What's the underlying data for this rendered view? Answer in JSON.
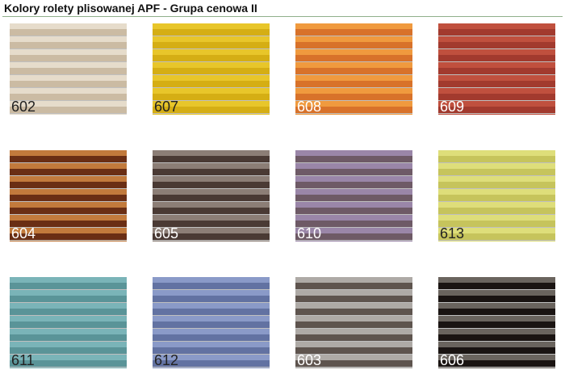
{
  "title": "Kolory rolety plisowanej APF - Grupa cenowa II",
  "swatches": [
    {
      "code": "602",
      "light": "#e6dccb",
      "dark": "#cbbba3",
      "text": "#222222"
    },
    {
      "code": "607",
      "light": "#e8c62a",
      "dark": "#d5ae14",
      "text": "#222222"
    },
    {
      "code": "608",
      "light": "#f09a3e",
      "dark": "#d8722a",
      "text": "#ffffff"
    },
    {
      "code": "609",
      "light": "#c0503e",
      "dark": "#a23a2e",
      "text": "#ffffff"
    },
    {
      "code": "604",
      "light": "#c27a3c",
      "dark": "#6a2e14",
      "text": "#ffffff"
    },
    {
      "code": "605",
      "light": "#8c7e76",
      "dark": "#4a3a34",
      "text": "#ffffff"
    },
    {
      "code": "610",
      "light": "#9a86a8",
      "dark": "#6e5a66",
      "text": "#ffffff"
    },
    {
      "code": "613",
      "light": "#dede7a",
      "dark": "#c6c45c",
      "text": "#222222"
    },
    {
      "code": "611",
      "light": "#7ab4b8",
      "dark": "#5a9498",
      "text": "#222222"
    },
    {
      "code": "612",
      "light": "#8a9ac8",
      "dark": "#6272a2",
      "text": "#222222"
    },
    {
      "code": "603",
      "light": "#aeaaa6",
      "dark": "#5e544e",
      "text": "#ffffff"
    },
    {
      "code": "606",
      "light": "#6a645e",
      "dark": "#1a1412",
      "text": "#ffffff"
    }
  ]
}
